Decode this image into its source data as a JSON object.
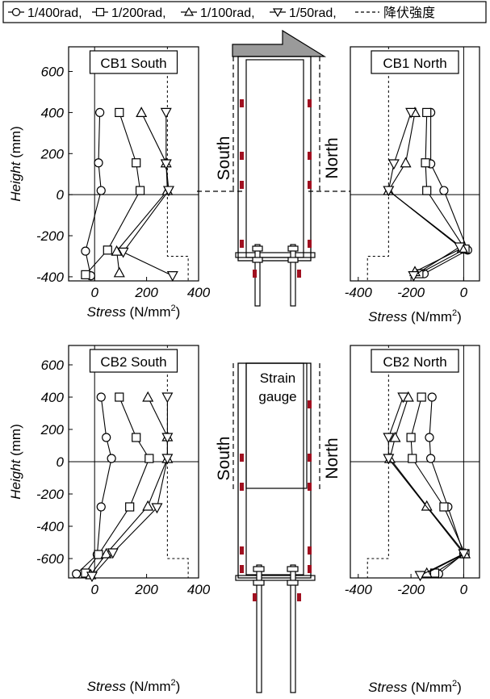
{
  "legend": {
    "items": [
      {
        "label": "1/400rad,",
        "marker": "circle"
      },
      {
        "label": "1/200rad,",
        "marker": "square"
      },
      {
        "label": "1/100rad,",
        "marker": "triangle-up"
      },
      {
        "label": "1/50rad,",
        "marker": "triangle-down"
      },
      {
        "label": "降伏強度",
        "marker": "dashed-line"
      }
    ]
  },
  "diagram_labels": {
    "south": "South",
    "north": "North",
    "strain_gauge_line1": "Strain",
    "strain_gauge_line2": "gauge"
  },
  "colors": {
    "gauge": "#a01020",
    "loading_arrow": "#9a9a9a"
  },
  "chart_data": [
    {
      "type": "line",
      "panel": "CB1 South",
      "xlabel_italic": "Stress",
      "xlabel_unit": " (N/mm",
      "xlabel_sup": "2",
      "xlabel_close": ")",
      "ylabel_italic": "Height",
      "ylabel_unit": " (mm)",
      "xlim": [
        -100,
        400
      ],
      "ylim": [
        -420,
        720
      ],
      "xticks": [
        0,
        200,
        400
      ],
      "yticks": [
        -400,
        -200,
        0,
        200,
        400,
        600
      ],
      "yield_x": 280,
      "yield_x2": 360,
      "yield_y_break": -300,
      "series": [
        {
          "name": "1/400rad",
          "marker": "circle",
          "points": [
            [
              -15,
              -395
            ],
            [
              -35,
              -275
            ],
            [
              25,
              20
            ],
            [
              15,
              155
            ],
            [
              20,
              400
            ]
          ]
        },
        {
          "name": "1/200rad",
          "marker": "square",
          "points": [
            [
              -35,
              -390
            ],
            [
              50,
              -270
            ],
            [
              175,
              20
            ],
            [
              160,
              155
            ],
            [
              95,
              400
            ]
          ]
        },
        {
          "name": "1/100rad",
          "marker": "triangle-up",
          "points": [
            [
              95,
              -380
            ],
            [
              85,
              -275
            ],
            [
              280,
              20
            ],
            [
              275,
              155
            ],
            [
              180,
              400
            ]
          ]
        },
        {
          "name": "1/50rad",
          "marker": "triangle-down",
          "points": [
            [
              300,
              -395
            ],
            [
              110,
              -280
            ],
            [
              285,
              20
            ],
            [
              275,
              150
            ],
            [
              275,
              400
            ]
          ]
        }
      ]
    },
    {
      "type": "line",
      "panel": "CB1 North",
      "xlabel_italic": "Stress",
      "xlabel_unit": " (N/mm",
      "xlabel_sup": "2",
      "xlabel_close": ")",
      "xlim": [
        -430,
        60
      ],
      "ylim": [
        -420,
        720
      ],
      "xticks": [
        -400,
        -200,
        0
      ],
      "yield_x": -285,
      "yield_x2": -365,
      "yield_y_break": -300,
      "series": [
        {
          "name": "1/400rad",
          "marker": "circle",
          "points": [
            [
              -150,
              -385
            ],
            [
              15,
              -270
            ],
            [
              -75,
              20
            ],
            [
              -125,
              150
            ],
            [
              -125,
              400
            ]
          ]
        },
        {
          "name": "1/200rad",
          "marker": "square",
          "points": [
            [
              -170,
              -385
            ],
            [
              5,
              -265
            ],
            [
              -140,
              20
            ],
            [
              -145,
              155
            ],
            [
              -140,
              400
            ]
          ]
        },
        {
          "name": "1/100rad",
          "marker": "triangle-up",
          "points": [
            [
              -185,
              -375
            ],
            [
              -5,
              -260
            ],
            [
              -285,
              20
            ],
            [
              -220,
              155
            ],
            [
              -185,
              400
            ]
          ]
        },
        {
          "name": "1/50rad",
          "marker": "triangle-down",
          "points": [
            [
              -190,
              -395
            ],
            [
              -15,
              -255
            ],
            [
              -285,
              20
            ],
            [
              -265,
              150
            ],
            [
              -200,
              400
            ]
          ]
        }
      ]
    },
    {
      "type": "line",
      "panel": "CB2 South",
      "xlabel_italic": "Stress",
      "xlabel_unit": " (N/mm",
      "xlabel_sup": "2",
      "xlabel_close": ")",
      "ylabel_italic": "Height",
      "ylabel_unit": " (mm)",
      "xlim": [
        -100,
        400
      ],
      "ylim": [
        -720,
        720
      ],
      "xticks": [
        0,
        200,
        400
      ],
      "yticks": [
        -600,
        -400,
        -200,
        0,
        200,
        400,
        600
      ],
      "yield_x": 280,
      "yield_x2": 360,
      "yield_y_break": -600,
      "series": [
        {
          "name": "1/400rad",
          "marker": "circle",
          "points": [
            [
              -70,
              -695
            ],
            [
              10,
              -575
            ],
            [
              25,
              -280
            ],
            [
              65,
              20
            ],
            [
              45,
              150
            ],
            [
              25,
              400
            ]
          ]
        },
        {
          "name": "1/200rad",
          "marker": "square",
          "points": [
            [
              -35,
              -690
            ],
            [
              15,
              -575
            ],
            [
              135,
              -280
            ],
            [
              210,
              20
            ],
            [
              160,
              150
            ],
            [
              95,
              400
            ]
          ]
        },
        {
          "name": "1/100rad",
          "marker": "triangle-up",
          "points": [
            [
              -15,
              -700
            ],
            [
              45,
              -570
            ],
            [
              205,
              -275
            ],
            [
              280,
              20
            ],
            [
              280,
              155
            ],
            [
              205,
              400
            ]
          ]
        },
        {
          "name": "1/50rad",
          "marker": "triangle-down",
          "points": [
            [
              -10,
              -710
            ],
            [
              70,
              -565
            ],
            [
              240,
              -285
            ],
            [
              280,
              20
            ],
            [
              280,
              150
            ],
            [
              280,
              400
            ]
          ]
        }
      ]
    },
    {
      "type": "line",
      "panel": "CB2 North",
      "xlabel_italic": "Stress",
      "xlabel_unit": " (N/mm",
      "xlabel_sup": "2",
      "xlabel_close": ")",
      "xlim": [
        -430,
        60
      ],
      "ylim": [
        -720,
        720
      ],
      "xticks": [
        -400,
        -200,
        0
      ],
      "yield_x": -285,
      "yield_x2": -365,
      "yield_y_break": -600,
      "series": [
        {
          "name": "1/400rad",
          "marker": "circle",
          "points": [
            [
              -95,
              -695
            ],
            [
              0,
              -570
            ],
            [
              -60,
              -280
            ],
            [
              -125,
              20
            ],
            [
              -130,
              150
            ],
            [
              -120,
              400
            ]
          ]
        },
        {
          "name": "1/200rad",
          "marker": "square",
          "points": [
            [
              -110,
              -690
            ],
            [
              5,
              -570
            ],
            [
              -75,
              -280
            ],
            [
              -195,
              20
            ],
            [
              -200,
              150
            ],
            [
              -160,
              400
            ]
          ]
        },
        {
          "name": "1/100rad",
          "marker": "triangle-up",
          "points": [
            [
              -140,
              -690
            ],
            [
              5,
              -570
            ],
            [
              -140,
              -275
            ],
            [
              -280,
              20
            ],
            [
              -260,
              150
            ],
            [
              -210,
              400
            ]
          ]
        },
        {
          "name": "1/50rad",
          "marker": "triangle-down",
          "points": [
            [
              -165,
              -705
            ],
            [
              0,
              -570
            ],
            [
              -285,
              20
            ],
            [
              -285,
              150
            ],
            [
              -230,
              400
            ]
          ]
        }
      ]
    }
  ]
}
